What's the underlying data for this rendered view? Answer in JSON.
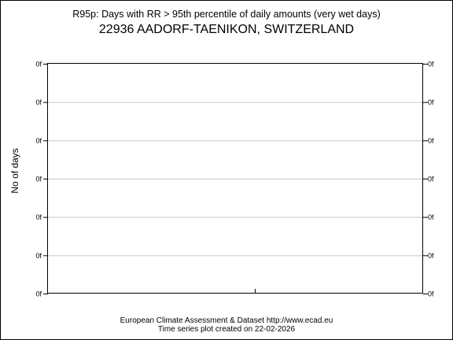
{
  "chart_data": {
    "type": "line",
    "title": "R95p: Days with RR > 95th percentile of daily amounts (very wet days)",
    "subtitle": "22936 AADORF-TAENIKON, SWITZERLAND",
    "xlabel": "",
    "ylabel": "No of days",
    "y_tick_labels": [
      "0f",
      "0f",
      "0f",
      "0f",
      "0f",
      "0f",
      "0f"
    ],
    "series": [],
    "grid": true
  },
  "footer": {
    "line1": "European Climate Assessment & Dataset  http://www.ecad.eu",
    "line2": "Time series plot created on 22-02-2026"
  }
}
